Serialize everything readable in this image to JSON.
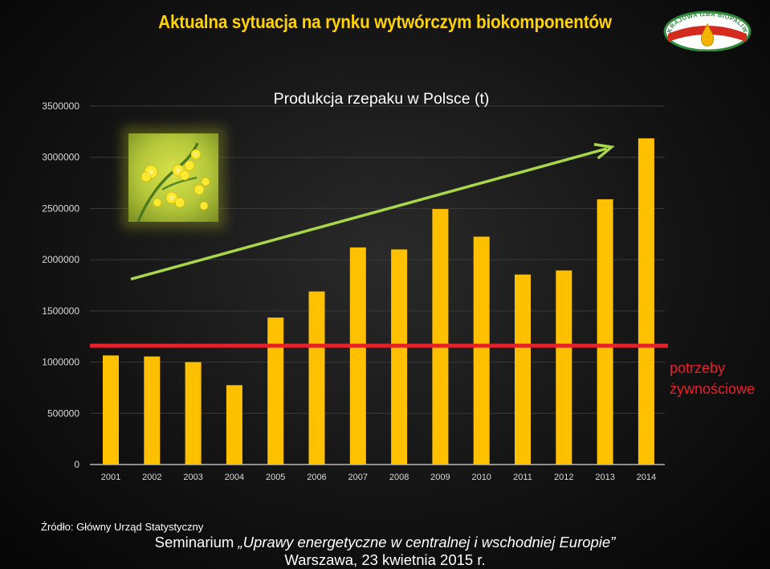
{
  "slide": {
    "title": "Aktualna sytuacja na rynku wytwórczym biokomponentów",
    "logo_text": "KRAJOWA IZBA BIOPALIW",
    "source": "Źródło: Główny Urząd Statystyczny",
    "footer_prefix": "Seminarium ",
    "footer_italic": "„Uprawy energetyczne w centralnej i wschodniej Europie”",
    "footer_line2": "Warszawa, 23 kwietnia 2015 r.",
    "note": "potrzeby żywnościowe"
  },
  "colors": {
    "bar": "#ffc000",
    "title": "#ffd200",
    "threshold_line": "#e8202a",
    "trend_arrow": "#a8d84a"
  },
  "icons": {
    "photo": "rapeseed-flower-photo",
    "logo": "krajowa-izba-biopaliw-logo"
  },
  "chart_data": {
    "type": "bar",
    "title": "Produkcja rzepaku w Polsce (t)",
    "categories": [
      "2001",
      "2002",
      "2003",
      "2004",
      "2005",
      "2006",
      "2007",
      "2008",
      "2009",
      "2010",
      "2011",
      "2012",
      "2013",
      "2014"
    ],
    "values": [
      1065000,
      1055000,
      1000000,
      775000,
      1435000,
      1690000,
      2120000,
      2100000,
      2495000,
      2225000,
      1855000,
      1895000,
      2590000,
      3185000
    ],
    "ylim": [
      0,
      3500000
    ],
    "yticks": [
      "0",
      "500000",
      "1000000",
      "1500000",
      "2000000",
      "2500000",
      "3000000",
      "3500000"
    ],
    "threshold": {
      "value": 1160000,
      "label": "potrzeby żywnościowe"
    },
    "trend_arrow": {
      "from": {
        "x": "2001",
        "y": 1810000
      },
      "to": {
        "x": "2013",
        "y": 3100000
      }
    },
    "grid": true,
    "legend": "none"
  }
}
